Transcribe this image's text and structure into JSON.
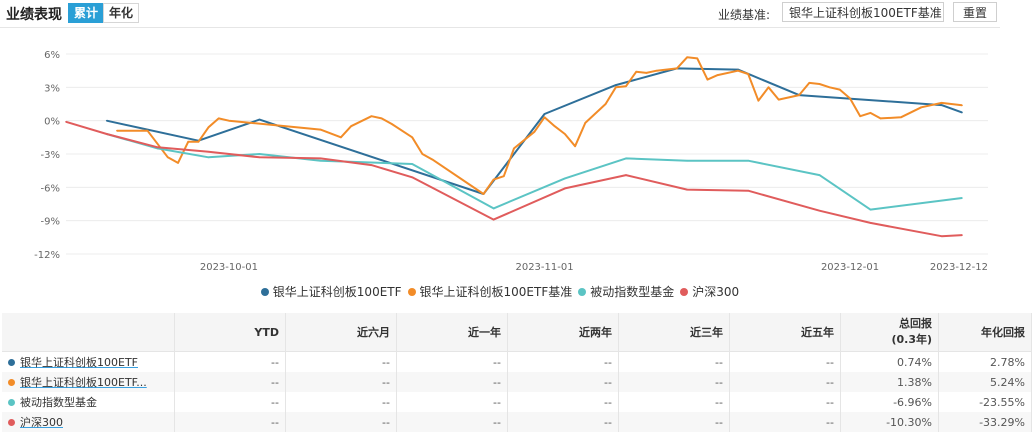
{
  "header": {
    "title": "业绩表现",
    "tabs": [
      {
        "label": "累计",
        "active": true
      },
      {
        "label": "年化",
        "active": false
      }
    ],
    "benchmark_label": "业绩基准:",
    "benchmark_value": "银华上证科创板100ETF基准",
    "reset_label": "重置"
  },
  "chart_data": {
    "type": "line",
    "x_range": [
      "2023-09-15",
      "2023-12-12"
    ],
    "x_ticks": [
      "2023-10-01",
      "2023-11-01",
      "2023-12-01",
      "2023-12-12"
    ],
    "ylim": [
      -12,
      6
    ],
    "y_ticks": [
      "6%",
      "3%",
      "0%",
      "-3%",
      "-6%",
      "-9%",
      "-12%"
    ],
    "grid": "horizontal",
    "legend_position": "bottom",
    "series": [
      {
        "name": "银华上证科创板100ETF",
        "color": "#2e6f99",
        "points": [
          [
            "2023-09-19",
            0.0
          ],
          [
            "2023-09-28",
            -1.8
          ],
          [
            "2023-10-04",
            0.1
          ],
          [
            "2023-10-26",
            -6.6
          ],
          [
            "2023-11-01",
            0.6
          ],
          [
            "2023-11-08",
            3.2
          ],
          [
            "2023-11-14",
            4.7
          ],
          [
            "2023-11-20",
            4.6
          ],
          [
            "2023-11-26",
            2.3
          ],
          [
            "2023-12-10",
            1.4
          ],
          [
            "2023-12-12",
            0.74
          ]
        ]
      },
      {
        "name": "银华上证科创板100ETF基准",
        "color": "#f28c28",
        "points": [
          [
            "2023-09-20",
            -0.9
          ],
          [
            "2023-09-23",
            -0.9
          ],
          [
            "2023-09-25",
            -3.3
          ],
          [
            "2023-09-26",
            -3.8
          ],
          [
            "2023-09-27",
            -1.9
          ],
          [
            "2023-09-28",
            -1.9
          ],
          [
            "2023-09-29",
            -0.6
          ],
          [
            "2023-09-30",
            0.2
          ],
          [
            "2023-10-01",
            0.0
          ],
          [
            "2023-10-10",
            -0.8
          ],
          [
            "2023-10-12",
            -1.5
          ],
          [
            "2023-10-13",
            -0.5
          ],
          [
            "2023-10-15",
            0.4
          ],
          [
            "2023-10-16",
            0.2
          ],
          [
            "2023-10-17",
            -0.3
          ],
          [
            "2023-10-19",
            -1.5
          ],
          [
            "2023-10-20",
            -3.0
          ],
          [
            "2023-10-21",
            -3.5
          ],
          [
            "2023-10-26",
            -6.6
          ],
          [
            "2023-10-27",
            -5.3
          ],
          [
            "2023-10-28",
            -5.0
          ],
          [
            "2023-10-29",
            -2.5
          ],
          [
            "2023-10-31",
            -1.0
          ],
          [
            "2023-11-01",
            0.3
          ],
          [
            "2023-11-02",
            -0.5
          ],
          [
            "2023-11-03",
            -1.2
          ],
          [
            "2023-11-04",
            -2.3
          ],
          [
            "2023-11-05",
            -0.2
          ],
          [
            "2023-11-07",
            1.5
          ],
          [
            "2023-11-08",
            3.0
          ],
          [
            "2023-11-09",
            3.1
          ],
          [
            "2023-11-10",
            4.4
          ],
          [
            "2023-11-11",
            4.3
          ],
          [
            "2023-11-12",
            4.5
          ],
          [
            "2023-11-14",
            4.7
          ],
          [
            "2023-11-15",
            5.7
          ],
          [
            "2023-11-16",
            5.6
          ],
          [
            "2023-11-17",
            3.7
          ],
          [
            "2023-11-18",
            4.1
          ],
          [
            "2023-11-20",
            4.5
          ],
          [
            "2023-11-21",
            4.2
          ],
          [
            "2023-11-22",
            1.8
          ],
          [
            "2023-11-23",
            3.0
          ],
          [
            "2023-11-24",
            1.9
          ],
          [
            "2023-11-26",
            2.3
          ],
          [
            "2023-11-27",
            3.4
          ],
          [
            "2023-11-28",
            3.3
          ],
          [
            "2023-11-29",
            3.0
          ],
          [
            "2023-11-30",
            2.8
          ],
          [
            "2023-12-01",
            2.0
          ],
          [
            "2023-12-02",
            0.4
          ],
          [
            "2023-12-03",
            0.7
          ],
          [
            "2023-12-04",
            0.2
          ],
          [
            "2023-12-06",
            0.3
          ],
          [
            "2023-12-08",
            1.2
          ],
          [
            "2023-12-10",
            1.6
          ],
          [
            "2023-12-12",
            1.38
          ]
        ]
      },
      {
        "name": "被动指数型基金",
        "color": "#5bc4c4",
        "points": [
          [
            "2023-09-19",
            -1.2
          ],
          [
            "2023-09-24",
            -2.5
          ],
          [
            "2023-09-29",
            -3.3
          ],
          [
            "2023-10-04",
            -3.0
          ],
          [
            "2023-10-10",
            -3.6
          ],
          [
            "2023-10-19",
            -3.9
          ],
          [
            "2023-10-27",
            -7.9
          ],
          [
            "2023-11-03",
            -5.2
          ],
          [
            "2023-11-09",
            -3.4
          ],
          [
            "2023-11-15",
            -3.6
          ],
          [
            "2023-11-21",
            -3.6
          ],
          [
            "2023-11-28",
            -4.9
          ],
          [
            "2023-12-03",
            -8.0
          ],
          [
            "2023-12-12",
            -6.96
          ]
        ]
      },
      {
        "name": "沪深300",
        "color": "#e05c5c",
        "points": [
          [
            "2023-09-15",
            -0.1
          ],
          [
            "2023-09-19",
            -1.2
          ],
          [
            "2023-09-24",
            -2.4
          ],
          [
            "2023-09-29",
            -2.8
          ],
          [
            "2023-10-04",
            -3.3
          ],
          [
            "2023-10-10",
            -3.4
          ],
          [
            "2023-10-15",
            -4.0
          ],
          [
            "2023-10-19",
            -5.1
          ],
          [
            "2023-10-27",
            -8.9
          ],
          [
            "2023-11-03",
            -6.1
          ],
          [
            "2023-11-09",
            -4.9
          ],
          [
            "2023-11-15",
            -6.2
          ],
          [
            "2023-11-21",
            -6.3
          ],
          [
            "2023-11-28",
            -8.1
          ],
          [
            "2023-12-03",
            -9.2
          ],
          [
            "2023-12-10",
            -10.4
          ],
          [
            "2023-12-12",
            -10.3
          ]
        ]
      }
    ]
  },
  "table": {
    "headers": [
      "",
      "YTD",
      "近六月",
      "近一年",
      "近两年",
      "近三年",
      "近五年",
      "总回报\n(0.3年)",
      "年化回报"
    ],
    "rows": [
      {
        "name": "银华上证科创板100ETF",
        "color": "#2e6f99",
        "link": true,
        "cells": [
          "--",
          "--",
          "--",
          "--",
          "--",
          "--"
        ],
        "total": "0.74%",
        "annual": "2.78%",
        "sign": "pos"
      },
      {
        "name": "银华上证科创板100ETF...",
        "color": "#f28c28",
        "link": true,
        "cells": [
          "--",
          "--",
          "--",
          "--",
          "--",
          "--"
        ],
        "total": "1.38%",
        "annual": "5.24%",
        "sign": "pos"
      },
      {
        "name": "被动指数型基金",
        "color": "#5bc4c4",
        "link": false,
        "cells": [
          "--",
          "--",
          "--",
          "--",
          "--",
          "--"
        ],
        "total": "-6.96%",
        "annual": "-23.55%",
        "sign": "neg"
      },
      {
        "name": "沪深300",
        "color": "#e05c5c",
        "link": true,
        "cells": [
          "--",
          "--",
          "--",
          "--",
          "--",
          "--"
        ],
        "total": "-10.30%",
        "annual": "-33.29%",
        "sign": "neg"
      }
    ]
  }
}
